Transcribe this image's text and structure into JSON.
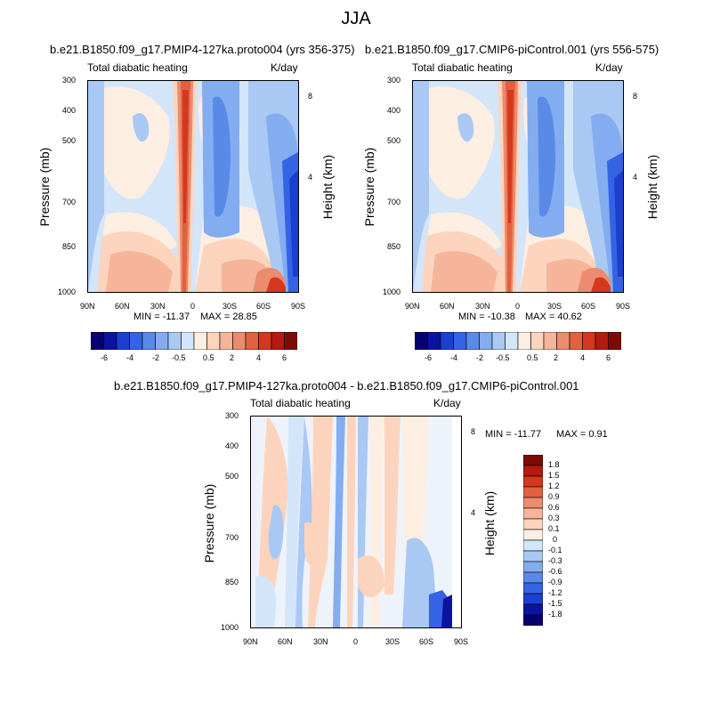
{
  "page_title": "JJA",
  "colors": {
    "diverging": [
      "#08006e",
      "#0a14a0",
      "#1b3fd0",
      "#3563e6",
      "#5a8ae8",
      "#84acf0",
      "#a9c8f4",
      "#d3e5f9",
      "#fdeee2",
      "#fcd4bd",
      "#f6b49a",
      "#ec8b6e",
      "#e2613f",
      "#d4381f",
      "#b41a10",
      "#7e0a08"
    ]
  },
  "chart_data": [
    {
      "type": "heatmap",
      "title": "b.e21.B1850.f09_g17.PMIP4-127ka.proto004 (yrs 356-375)",
      "subtitle_left": "Total diabatic heating",
      "subtitle_right": "K/day",
      "xlabel": "",
      "ylabel": "Pressure (mb)",
      "y2label": "Height (km)",
      "x_ticks": [
        "90N",
        "60N",
        "30N",
        "0",
        "30S",
        "60S",
        "90S"
      ],
      "y_ticks": [
        "300",
        "400",
        "500",
        "700",
        "850",
        "1000"
      ],
      "y2_ticks": [
        "8",
        "4"
      ],
      "min_label": "MIN = -11.37",
      "max_label": "MAX =  28.85",
      "min": -11.37,
      "max": 28.85,
      "colorbar_labels": [
        "-6",
        "-4",
        "-2",
        "-0.5",
        "0.5",
        "2",
        "4",
        "6"
      ]
    },
    {
      "type": "heatmap",
      "title": "b.e21.B1850.f09_g17.CMIP6-piControl.001 (yrs 556-575)",
      "subtitle_left": "Total diabatic heating",
      "subtitle_right": "K/day",
      "xlabel": "",
      "ylabel": "Pressure (mb)",
      "y2label": "Height (km)",
      "x_ticks": [
        "90N",
        "60N",
        "30N",
        "0",
        "30S",
        "60S",
        "90S"
      ],
      "y_ticks": [
        "300",
        "400",
        "500",
        "700",
        "850",
        "1000"
      ],
      "y2_ticks": [
        "8",
        "4"
      ],
      "min_label": "MIN = -10.38",
      "max_label": "MAX =  40.62",
      "min": -10.38,
      "max": 40.62,
      "colorbar_labels": [
        "-6",
        "-4",
        "-2",
        "-0.5",
        "0.5",
        "2",
        "4",
        "6"
      ]
    },
    {
      "type": "heatmap",
      "title": "b.e21.B1850.f09_g17.PMIP4-127ka.proto004 - b.e21.B1850.f09_g17.CMIP6-piControl.001",
      "subtitle_left": "Total diabatic heating",
      "subtitle_right": "K/day",
      "xlabel": "",
      "ylabel": "Pressure (mb)",
      "y2label": "Height (km)",
      "x_ticks": [
        "90N",
        "60N",
        "30N",
        "0",
        "30S",
        "60S",
        "90S"
      ],
      "y_ticks": [
        "300",
        "400",
        "500",
        "700",
        "850",
        "1000"
      ],
      "y2_ticks": [
        "8",
        "4"
      ],
      "min_label": "MIN = -11.77",
      "max_label": "MAX =    0.91",
      "min": -11.77,
      "max": 0.91,
      "colorbar_labels": [
        "1.8",
        "1.5",
        "1.2",
        "0.9",
        "0.6",
        "0.3",
        "0.1",
        "0",
        "-0.1",
        "-0.3",
        "-0.6",
        "-0.9",
        "-1.2",
        "-1.5",
        "-1.8"
      ]
    }
  ]
}
